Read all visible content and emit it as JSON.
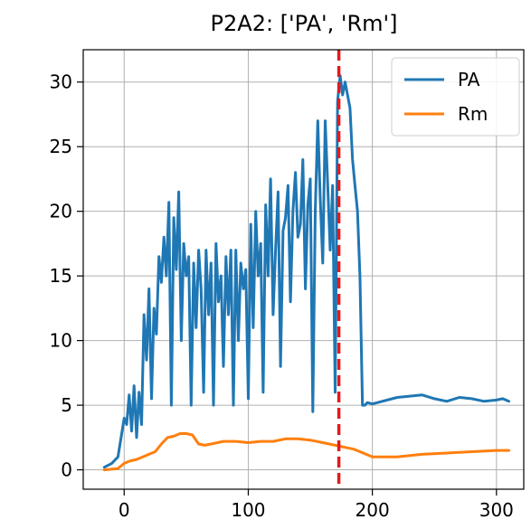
{
  "chart_data": {
    "type": "line",
    "title": "P2A2: ['PA', 'Rm']",
    "xlabel": "",
    "ylabel": "",
    "xlim": [
      -33,
      322
    ],
    "ylim": [
      -1.5,
      32.5
    ],
    "xticks": [
      0,
      100,
      200,
      300
    ],
    "yticks": [
      0,
      5,
      10,
      15,
      20,
      25,
      30
    ],
    "grid": true,
    "legend_position": "top-right",
    "vline": {
      "x": 173,
      "color": "#e31a1c",
      "style": "dashed"
    },
    "series": [
      {
        "name": "PA",
        "color": "#1f77b4",
        "x": [
          -16,
          -10,
          -5,
          0,
          2,
          4,
          6,
          8,
          10,
          12,
          14,
          16,
          18,
          20,
          22,
          24,
          26,
          28,
          30,
          32,
          34,
          36,
          38,
          40,
          42,
          44,
          46,
          48,
          50,
          52,
          54,
          56,
          58,
          60,
          62,
          64,
          66,
          68,
          70,
          72,
          74,
          76,
          78,
          80,
          82,
          84,
          86,
          88,
          90,
          92,
          94,
          96,
          98,
          100,
          102,
          104,
          106,
          108,
          110,
          112,
          114,
          116,
          118,
          120,
          122,
          124,
          126,
          128,
          130,
          132,
          134,
          136,
          138,
          140,
          142,
          144,
          146,
          148,
          150,
          152,
          154,
          156,
          158,
          160,
          162,
          164,
          166,
          168,
          170,
          172,
          174,
          176,
          178,
          180,
          182,
          184,
          186,
          188,
          190,
          192,
          194,
          196,
          200,
          220,
          240,
          250,
          260,
          270,
          280,
          290,
          300,
          305,
          310
        ],
        "values": [
          0.2,
          0.5,
          1.0,
          4.0,
          3.5,
          5.8,
          3.0,
          6.5,
          2.5,
          6.0,
          3.5,
          12.0,
          8.5,
          14.0,
          5.5,
          12.5,
          10.5,
          16.5,
          14.5,
          18.0,
          15.0,
          20.7,
          5.0,
          19.5,
          15.5,
          21.5,
          10.0,
          17.5,
          15.0,
          16.5,
          5.0,
          16.0,
          11.0,
          17.0,
          14.0,
          6.0,
          17.0,
          12.0,
          16.0,
          5.0,
          17.5,
          13.0,
          15.0,
          8.0,
          16.5,
          12.0,
          17.0,
          5.0,
          17.0,
          10.0,
          16.0,
          14.0,
          15.5,
          5.5,
          19.0,
          11.0,
          20.0,
          15.0,
          17.5,
          6.0,
          20.5,
          15.0,
          22.5,
          12.0,
          17.0,
          21.5,
          8.0,
          18.5,
          19.5,
          22.0,
          13.0,
          20.0,
          23.0,
          18.0,
          19.0,
          24.0,
          14.0,
          20.5,
          22.5,
          4.5,
          20.0,
          27.0,
          21.0,
          16.0,
          27.0,
          22.0,
          17.0,
          22.0,
          6.0,
          28.5,
          30.5,
          29.0,
          30.0,
          29.0,
          28.0,
          24.0,
          22.0,
          20.0,
          15.0,
          5.0,
          5.0,
          5.2,
          5.1,
          5.6,
          5.8,
          5.5,
          5.3,
          5.6,
          5.5,
          5.3,
          5.4,
          5.5,
          5.3
        ]
      },
      {
        "name": "Rm",
        "color": "#ff7f0e",
        "x": [
          -16,
          -5,
          0,
          5,
          10,
          20,
          25,
          30,
          35,
          40,
          45,
          50,
          55,
          60,
          65,
          70,
          80,
          90,
          100,
          110,
          120,
          130,
          140,
          150,
          160,
          170,
          180,
          185,
          190,
          195,
          200,
          210,
          220,
          240,
          260,
          280,
          300,
          310
        ],
        "values": [
          0.0,
          0.1,
          0.5,
          0.7,
          0.8,
          1.2,
          1.4,
          2.0,
          2.5,
          2.6,
          2.8,
          2.8,
          2.7,
          2.0,
          1.9,
          2.0,
          2.2,
          2.2,
          2.1,
          2.2,
          2.2,
          2.4,
          2.4,
          2.3,
          2.1,
          1.9,
          1.7,
          1.6,
          1.4,
          1.2,
          1.0,
          1.0,
          1.0,
          1.2,
          1.3,
          1.4,
          1.5,
          1.5
        ]
      }
    ]
  }
}
